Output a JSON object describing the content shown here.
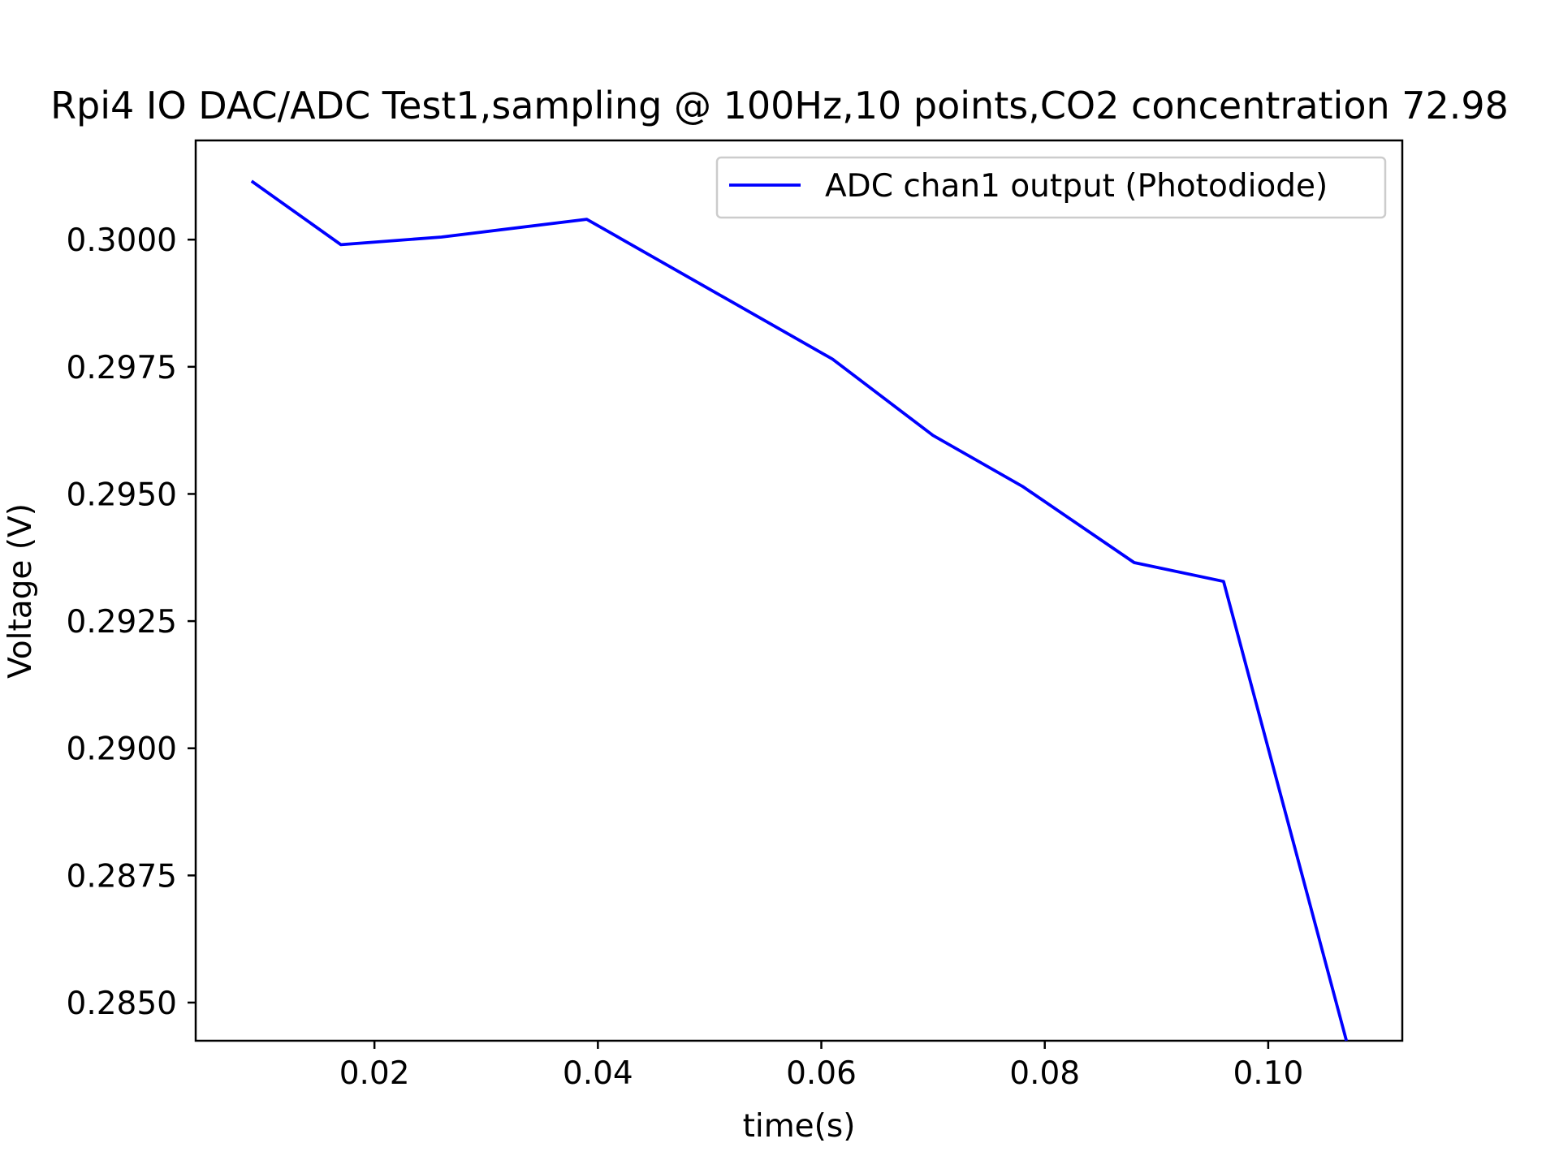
{
  "chart_data": {
    "type": "line",
    "title": "Rpi4 IO DAC/ADC Test1,sampling @ 100Hz,10 points,CO2 concentration 72.98",
    "xlabel": "time(s)",
    "ylabel": "Voltage (V)",
    "xlim": [
      0.004,
      0.112
    ],
    "ylim": [
      0.28425,
      0.30195
    ],
    "xticks": [
      0.02,
      0.04,
      0.06,
      0.08,
      0.1
    ],
    "xtick_labels": [
      "0.02",
      "0.04",
      "0.06",
      "0.08",
      "0.10"
    ],
    "yticks": [
      0.285,
      0.2875,
      0.29,
      0.2925,
      0.295,
      0.2975,
      0.3
    ],
    "ytick_labels": [
      "0.2850",
      "0.2875",
      "0.2900",
      "0.2925",
      "0.2950",
      "0.2975",
      "0.3000"
    ],
    "grid": false,
    "legend": {
      "placement": "top-right",
      "entries": [
        "ADC chan1 output  (Photodiode)"
      ]
    },
    "series": [
      {
        "name": "ADC chan1 output  (Photodiode)",
        "color": "#0000ff",
        "x": [
          0.009,
          0.017,
          0.026,
          0.039,
          0.061,
          0.07,
          0.078,
          0.088,
          0.096,
          0.107
        ],
        "y": [
          0.30115,
          0.2999,
          0.30005,
          0.3004,
          0.29765,
          0.29615,
          0.29515,
          0.29365,
          0.29328,
          0.28425
        ]
      }
    ]
  }
}
